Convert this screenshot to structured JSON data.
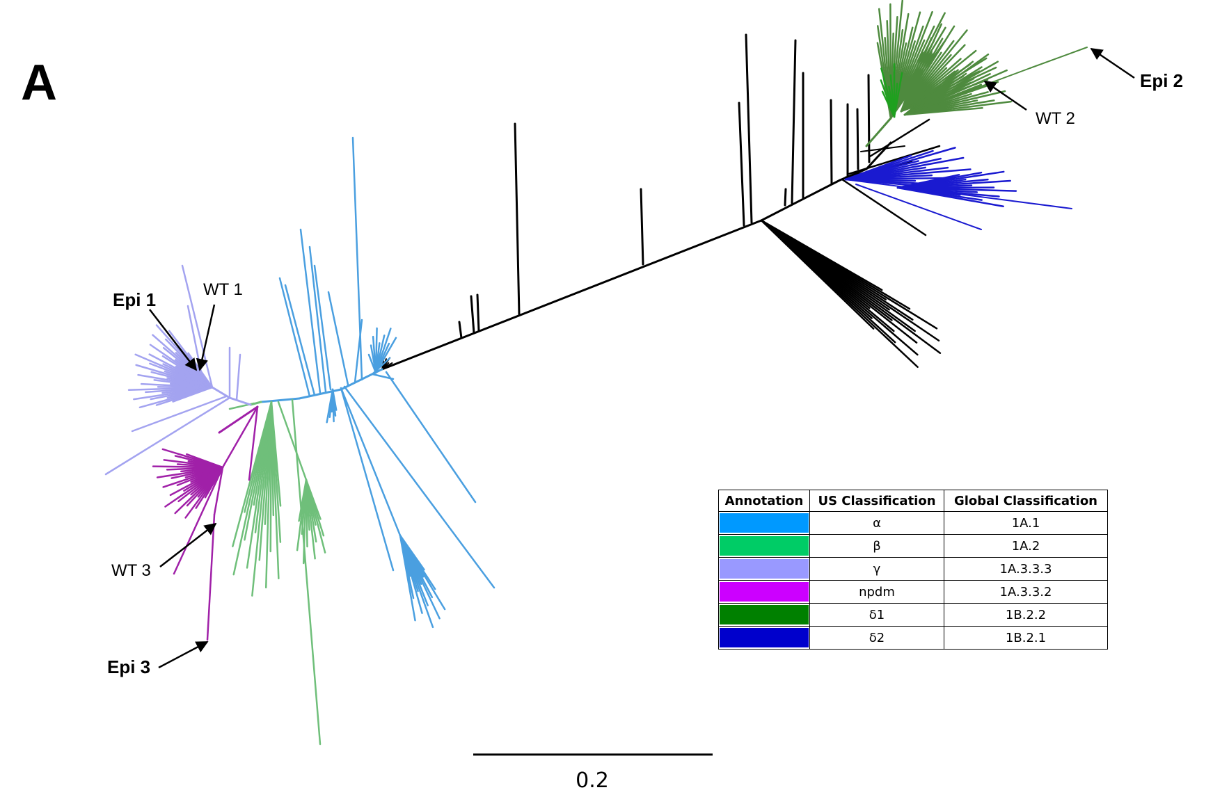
{
  "panel_label": "A",
  "scale_bar": {
    "label": "0.2"
  },
  "annotations": [
    {
      "id": "epi1",
      "text": "Epi 1",
      "bold": true
    },
    {
      "id": "wt1",
      "text": "WT 1",
      "bold": false
    },
    {
      "id": "epi2",
      "text": "Epi 2",
      "bold": true
    },
    {
      "id": "wt2",
      "text": "WT 2",
      "bold": false
    },
    {
      "id": "wt3",
      "text": "WT 3",
      "bold": false
    },
    {
      "id": "epi3",
      "text": "Epi 3",
      "bold": true
    }
  ],
  "legend": {
    "headers": [
      "Annotation",
      "US Classification",
      "Global Classification"
    ],
    "rows": [
      {
        "color": "#0099ff",
        "us": "α",
        "global": "1A.1"
      },
      {
        "color": "#00cc66",
        "us": "β",
        "global": "1A.2"
      },
      {
        "color": "#9999ff",
        "us": "γ",
        "global": "1A.3.3.3"
      },
      {
        "color": "#cc00ff",
        "us": "npdm",
        "global": "1A.3.3.2"
      },
      {
        "color": "#008000",
        "us": "δ1",
        "global": "1B.2.2"
      },
      {
        "color": "#0000cc",
        "us": "δ2",
        "global": "1B.2.1"
      }
    ]
  },
  "clade_colors": {
    "alpha": "#4a9fe0",
    "beta": "#6fbf7a",
    "gamma": "#a3a3f0",
    "npdm": "#a020a8",
    "delta1": "#4e8a3e",
    "delta1_core": "#1fa01f",
    "delta2": "#1a1ad0",
    "backbone": "#000000"
  }
}
